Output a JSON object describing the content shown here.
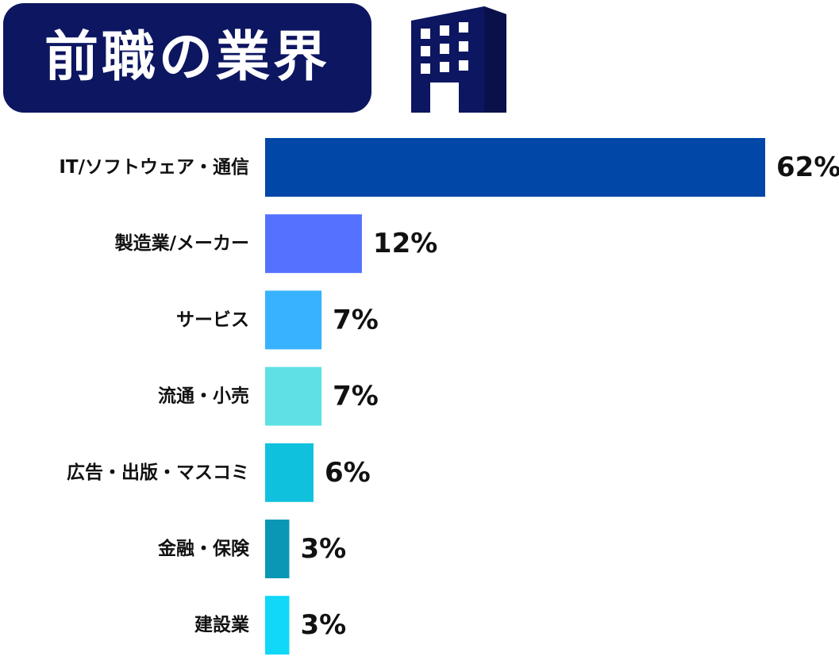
{
  "title": "前職の業界",
  "icon": "building-icon",
  "colors": {
    "title_bg": "#0d1660",
    "title_text": "#ffffff",
    "icon": "#0d1660"
  },
  "chart_data": {
    "type": "bar",
    "orientation": "horizontal",
    "title": "前職の業界",
    "categories": [
      "IT/ソフトウェア・通信",
      "製造業/メーカー",
      "サービス",
      "流通・小売",
      "広告・出版・マスコミ",
      "金融・保険",
      "建設業"
    ],
    "values": [
      62,
      12,
      7,
      7,
      6,
      3,
      3
    ],
    "value_labels": [
      "62%",
      "12%",
      "7%",
      "7%",
      "6%",
      "3%",
      "3%"
    ],
    "bar_colors": [
      "#0047a8",
      "#5472ff",
      "#38b2ff",
      "#5ee0e4",
      "#10c1de",
      "#0a97b6",
      "#10d8f6"
    ],
    "unit": "%",
    "xlim": [
      0,
      62
    ],
    "grid": false,
    "legend": "none"
  }
}
